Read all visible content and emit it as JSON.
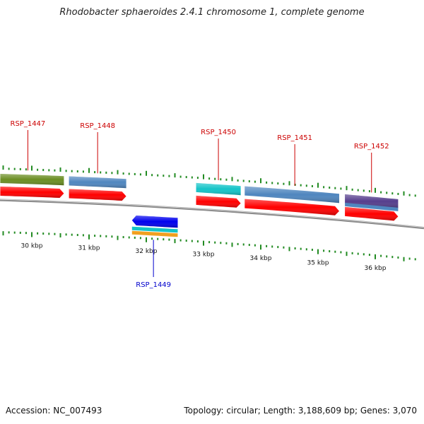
{
  "title": "Rhodobacter sphaeroides 2.4.1 chromosome 1, complete genome",
  "footer": {
    "accession": "Accession: NC_007493",
    "summary": "Topology: circular; Length: 3,188,609 bp; Genes: 3,070"
  },
  "scale": {
    "ticks": [
      {
        "kbp": 30,
        "label": "30 kbp"
      },
      {
        "kbp": 31,
        "label": "31 kbp"
      },
      {
        "kbp": 32,
        "label": "32 kbp"
      },
      {
        "kbp": 33,
        "label": "33 kbp"
      },
      {
        "kbp": 34,
        "label": "34 kbp"
      },
      {
        "kbp": 35,
        "label": "35 kbp"
      },
      {
        "kbp": 36,
        "label": "36 kbp"
      }
    ]
  },
  "genes": [
    {
      "id": "RSP_1447",
      "label": "RSP_1447",
      "strand": "+",
      "start_kbp": 29.45,
      "end_kbp": 30.56,
      "feature_color": "#6b8e23",
      "label_color": "#cc0000"
    },
    {
      "id": "RSP_1448",
      "label": "RSP_1448",
      "strand": "+",
      "start_kbp": 30.65,
      "end_kbp": 31.65,
      "feature_color": "#4f86bf",
      "label_color": "#cc0000"
    },
    {
      "id": "RSP_1449",
      "label": "RSP_1449",
      "strand": "-",
      "start_kbp": 31.75,
      "end_kbp": 32.55,
      "feature_color": "#0000ee",
      "label_color": "#0000cc"
    },
    {
      "id": "RSP_1450",
      "label": "RSP_1450",
      "strand": "+",
      "start_kbp": 32.87,
      "end_kbp": 33.65,
      "feature_color": "#14c4c8",
      "label_color": "#cc0000"
    },
    {
      "id": "RSP_1451",
      "label": "RSP_1451",
      "strand": "+",
      "start_kbp": 33.72,
      "end_kbp": 35.37,
      "feature_color": "#4f86bf",
      "label_color": "#cc0000"
    },
    {
      "id": "RSP_1452",
      "label": "RSP_1452",
      "strand": "+",
      "start_kbp": 35.47,
      "end_kbp": 36.4,
      "feature_color": "#553d8c",
      "label_color": "#cc0000"
    }
  ],
  "colors": {
    "gene_arrow": "#ff0000",
    "backbone": "#8a8a8a",
    "tick": "#228b22",
    "extra_bands": [
      "#14c4c8",
      "#f0a020"
    ]
  }
}
